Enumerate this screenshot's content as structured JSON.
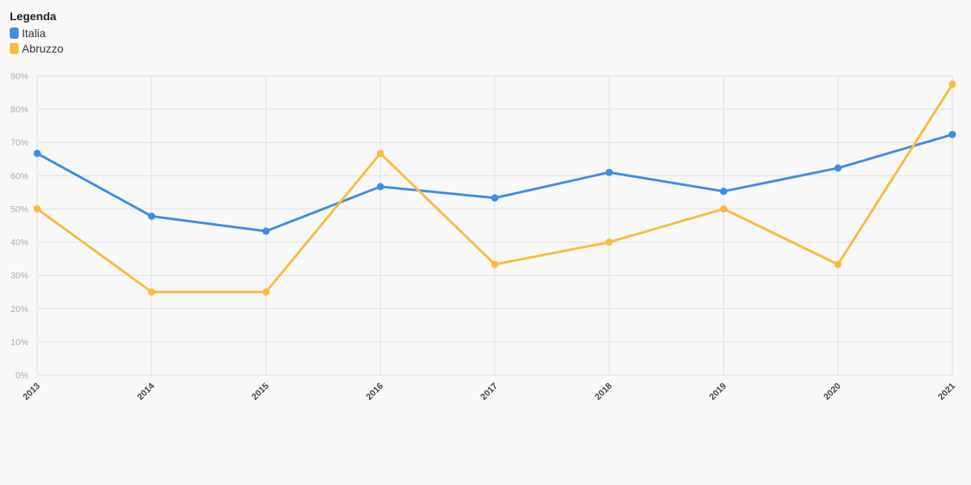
{
  "legend": {
    "title": "Legenda"
  },
  "chart_data": {
    "type": "line",
    "title": "",
    "xlabel": "",
    "ylabel": "",
    "x": [
      "2013",
      "2014",
      "2015",
      "2016",
      "2017",
      "2018",
      "2019",
      "2020",
      "2021"
    ],
    "y_ticks": [
      "0%",
      "10%",
      "20%",
      "30%",
      "40%",
      "50%",
      "60%",
      "70%",
      "80%",
      "90%"
    ],
    "ylim": [
      0,
      90
    ],
    "grid": true,
    "legend_position": "top-left",
    "series": [
      {
        "name": "Italia",
        "color": "#3b8de8",
        "values": [
          66.7,
          47.8,
          43.3,
          56.7,
          53.3,
          61.0,
          55.3,
          62.3,
          72.4
        ]
      },
      {
        "name": "Abruzzo",
        "color": "#fbbb3d",
        "values": [
          50.0,
          25.0,
          25.0,
          66.7,
          33.3,
          40.0,
          50.0,
          33.3,
          87.5
        ]
      }
    ]
  }
}
